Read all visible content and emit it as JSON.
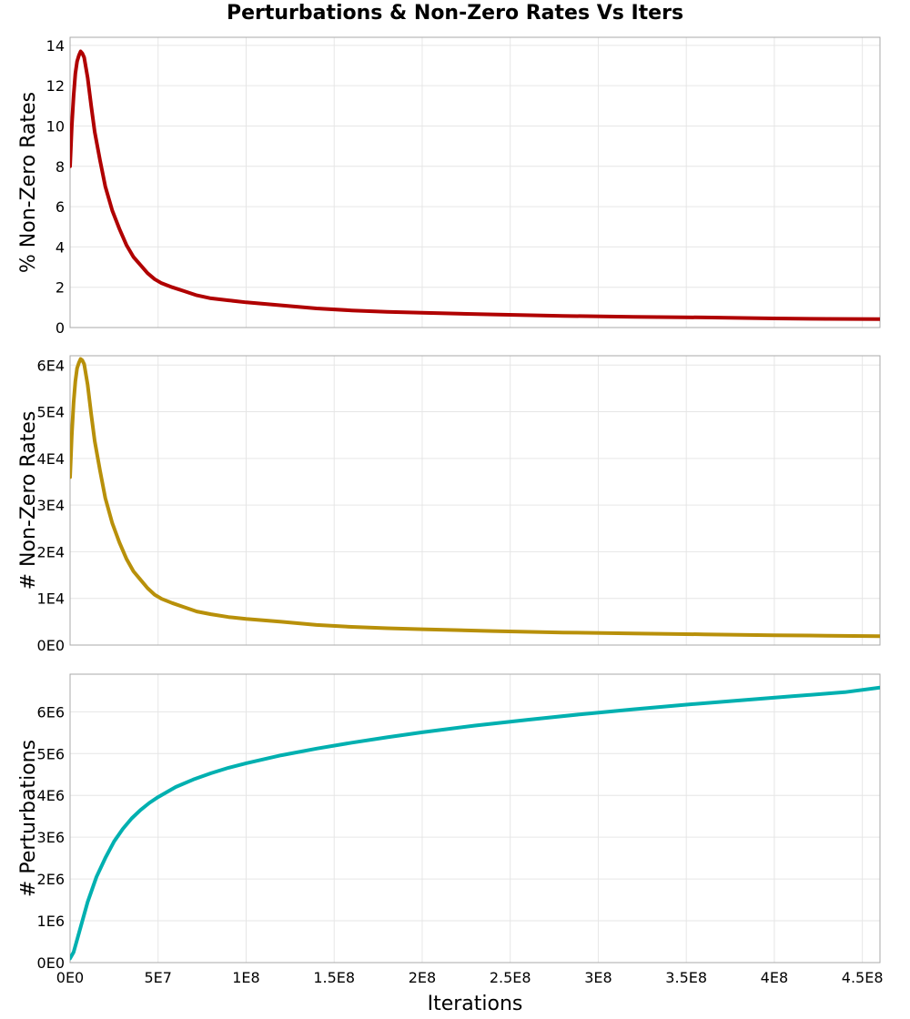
{
  "chart_data": {
    "type": "line",
    "title": "Perturbations & Non-Zero Rates Vs Iters",
    "xlabel": "Iterations",
    "xlim": [
      0,
      460000000
    ],
    "x_ticks": [
      {
        "value": 0,
        "label": "0E0"
      },
      {
        "value": 50000000,
        "label": "5E7"
      },
      {
        "value": 100000000,
        "label": "1E8"
      },
      {
        "value": 150000000,
        "label": "1.5E8"
      },
      {
        "value": 200000000,
        "label": "2E8"
      },
      {
        "value": 250000000,
        "label": "2.5E8"
      },
      {
        "value": 300000000,
        "label": "3E8"
      },
      {
        "value": 350000000,
        "label": "3.5E8"
      },
      {
        "value": 400000000,
        "label": "4E8"
      },
      {
        "value": 450000000,
        "label": "4.5E8"
      }
    ],
    "grid": true,
    "legend": "none",
    "panels": [
      {
        "ylabel": "% Non-Zero Rates",
        "ylim": [
          0,
          14.4
        ],
        "y_ticks": [
          {
            "value": 0,
            "label": "0"
          },
          {
            "value": 2,
            "label": "2"
          },
          {
            "value": 4,
            "label": "4"
          },
          {
            "value": 6,
            "label": "6"
          },
          {
            "value": 8,
            "label": "8"
          },
          {
            "value": 10,
            "label": "10"
          },
          {
            "value": 12,
            "label": "12"
          },
          {
            "value": 14,
            "label": "14"
          }
        ],
        "color": "#b00000",
        "x": [
          0,
          1000000,
          2000000,
          3000000,
          4000000,
          5000000,
          6000000,
          7000000,
          8000000,
          10000000,
          12000000,
          14000000,
          17000000,
          20000000,
          24000000,
          28000000,
          32000000,
          36000000,
          40000000,
          44000000,
          48000000,
          52000000,
          58000000,
          65000000,
          72000000,
          80000000,
          90000000,
          100000000,
          120000000,
          140000000,
          160000000,
          180000000,
          200000000,
          240000000,
          280000000,
          320000000,
          360000000,
          400000000,
          430000000,
          460000000
        ],
        "y": [
          8.0,
          10.0,
          11.5,
          12.6,
          13.2,
          13.5,
          13.7,
          13.6,
          13.4,
          12.4,
          11.0,
          9.7,
          8.3,
          7.0,
          5.8,
          4.9,
          4.1,
          3.5,
          3.1,
          2.7,
          2.4,
          2.2,
          2.0,
          1.8,
          1.6,
          1.45,
          1.35,
          1.25,
          1.1,
          0.95,
          0.85,
          0.78,
          0.73,
          0.65,
          0.58,
          0.53,
          0.5,
          0.45,
          0.43,
          0.42
        ]
      },
      {
        "ylabel": "# Non-Zero Rates",
        "ylim": [
          0,
          62000
        ],
        "y_ticks": [
          {
            "value": 0,
            "label": "0E0"
          },
          {
            "value": 10000,
            "label": "1E4"
          },
          {
            "value": 20000,
            "label": "2E4"
          },
          {
            "value": 30000,
            "label": "3E4"
          },
          {
            "value": 40000,
            "label": "4E4"
          },
          {
            "value": 50000,
            "label": "5E4"
          },
          {
            "value": 60000,
            "label": "6E4"
          }
        ],
        "color": "#b8900a",
        "x": [
          0,
          1000000,
          2000000,
          3000000,
          4000000,
          5000000,
          6000000,
          7000000,
          8000000,
          10000000,
          12000000,
          14000000,
          17000000,
          20000000,
          24000000,
          28000000,
          32000000,
          36000000,
          40000000,
          44000000,
          48000000,
          52000000,
          58000000,
          65000000,
          72000000,
          80000000,
          90000000,
          100000000,
          120000000,
          140000000,
          160000000,
          180000000,
          200000000,
          240000000,
          280000000,
          320000000,
          360000000,
          400000000,
          430000000,
          460000000
        ],
        "y": [
          36000,
          45000,
          52000,
          56500,
          59300,
          60500,
          61300,
          61000,
          60200,
          55800,
          49500,
          43700,
          37400,
          31500,
          26100,
          22000,
          18500,
          15800,
          14000,
          12200,
          10800,
          9900,
          9000,
          8100,
          7200,
          6600,
          6000,
          5600,
          5000,
          4300,
          3900,
          3600,
          3400,
          3000,
          2700,
          2500,
          2300,
          2100,
          2000,
          1900
        ]
      },
      {
        "ylabel": "# Perturbations",
        "ylim": [
          0,
          6900000
        ],
        "y_ticks": [
          {
            "value": 0,
            "label": "0E0"
          },
          {
            "value": 1000000,
            "label": "1E6"
          },
          {
            "value": 2000000,
            "label": "2E6"
          },
          {
            "value": 3000000,
            "label": "3E6"
          },
          {
            "value": 4000000,
            "label": "4E6"
          },
          {
            "value": 5000000,
            "label": "5E6"
          },
          {
            "value": 6000000,
            "label": "6E6"
          }
        ],
        "color": "#00b0b0",
        "x": [
          0,
          2000000,
          5000000,
          10000000,
          15000000,
          20000000,
          25000000,
          30000000,
          35000000,
          40000000,
          45000000,
          50000000,
          60000000,
          70000000,
          80000000,
          90000000,
          100000000,
          120000000,
          140000000,
          160000000,
          180000000,
          200000000,
          230000000,
          260000000,
          290000000,
          320000000,
          350000000,
          380000000,
          410000000,
          440000000,
          460000000
        ],
        "y": [
          100000,
          250000,
          700000,
          1450000,
          2050000,
          2500000,
          2900000,
          3200000,
          3450000,
          3650000,
          3820000,
          3960000,
          4200000,
          4380000,
          4530000,
          4660000,
          4770000,
          4960000,
          5120000,
          5260000,
          5390000,
          5510000,
          5670000,
          5810000,
          5940000,
          6060000,
          6170000,
          6270000,
          6370000,
          6470000,
          6580000
        ]
      }
    ]
  }
}
